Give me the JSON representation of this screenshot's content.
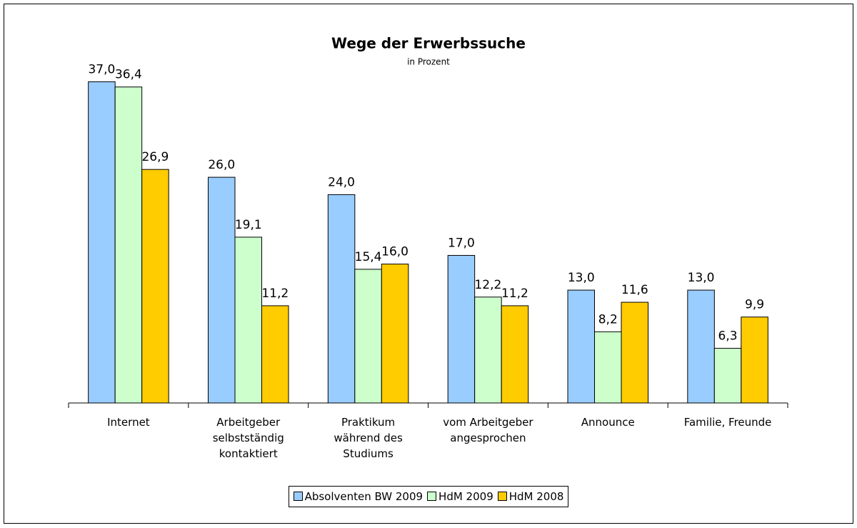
{
  "chart_data": {
    "type": "bar",
    "title": "Wege der Erwerbssuche",
    "subtitle": "in Prozent",
    "categories": [
      "Internet",
      "Arbeitgeber\nselbstständig\nkontaktiert",
      "Praktikum\nwährend des\nStudiums",
      "vom Arbeitgeber\nangesprochen",
      "Announce",
      "Familie, Freunde"
    ],
    "series": [
      {
        "name": "Absolventen BW 2009",
        "color": "#99ccff",
        "values": [
          37.0,
          26.0,
          24.0,
          17.0,
          13.0,
          13.0
        ],
        "value_labels": [
          "37,0",
          "26,0",
          "24,0",
          "17,0",
          "13,0",
          "13,0"
        ]
      },
      {
        "name": "HdM 2009",
        "color": "#ccffcc",
        "values": [
          36.4,
          19.1,
          15.4,
          12.2,
          8.2,
          6.3
        ],
        "value_labels": [
          "36,4",
          "19,1",
          "15,4",
          "12,2",
          "8,2",
          "6,3"
        ]
      },
      {
        "name": "HdM 2008",
        "color": "#ffcc00",
        "values": [
          26.9,
          11.2,
          16.0,
          11.2,
          11.6,
          9.9
        ],
        "value_labels": [
          "26,9",
          "11,2",
          "16,0",
          "11,2",
          "11,6",
          "9,9"
        ]
      }
    ],
    "ylim": [
      0,
      40
    ],
    "legend": "bottom"
  }
}
